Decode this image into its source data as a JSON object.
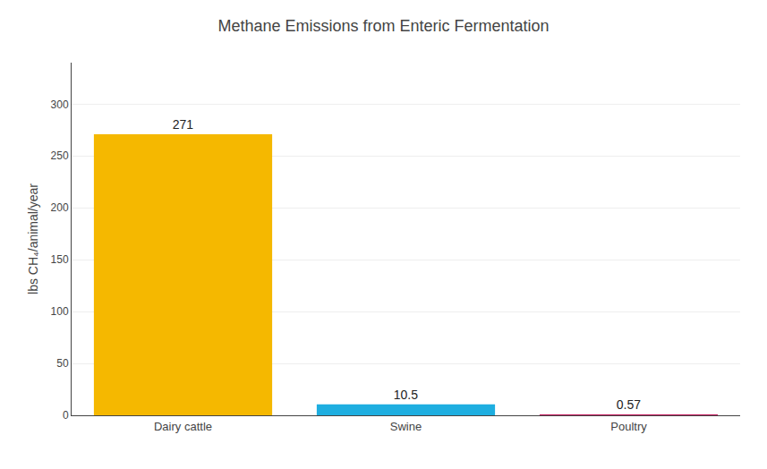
{
  "chart_data": {
    "type": "bar",
    "title": "Methane Emissions from Enteric Fermentation",
    "categories": [
      "Dairy cattle",
      "Swine",
      "Poultry"
    ],
    "values": [
      271,
      10.5,
      0.57
    ],
    "colors": [
      "#F5B800",
      "#1EAEE0",
      "#C2185B"
    ],
    "ylabel": "lbs CH₄/animal/year",
    "ylim": [
      0,
      340
    ],
    "yticks": [
      0,
      50,
      100,
      150,
      200,
      250,
      300
    ],
    "grid": true,
    "data_labels": true
  }
}
